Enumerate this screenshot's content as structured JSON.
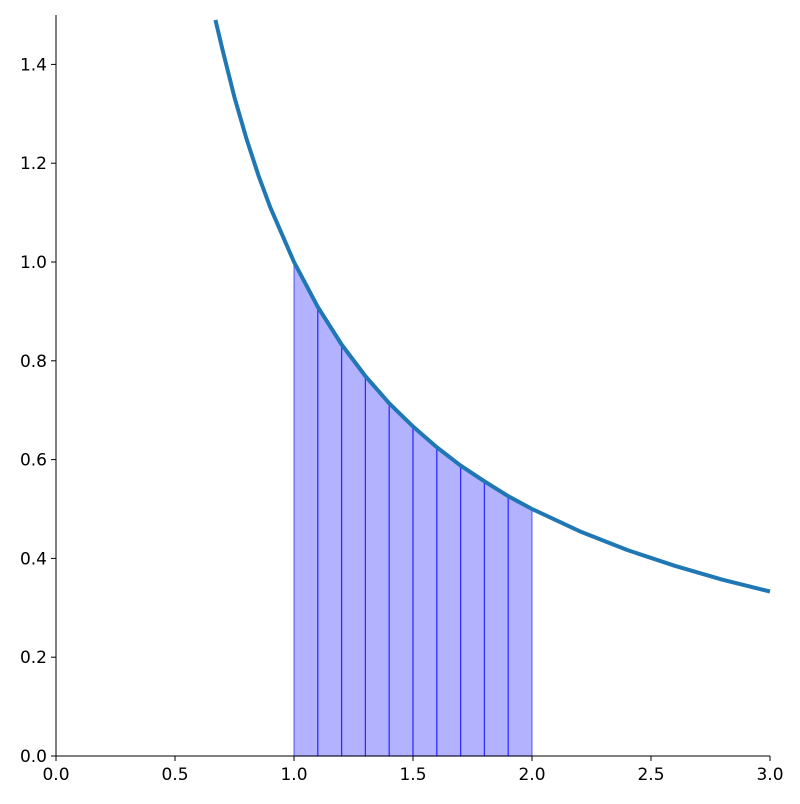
{
  "chart_data": {
    "type": "line",
    "x": [
      0.67,
      0.7,
      0.75,
      0.8,
      0.85,
      0.9,
      1.0,
      1.1,
      1.2,
      1.3,
      1.4,
      1.5,
      1.6,
      1.7,
      1.8,
      1.9,
      2.0,
      2.2,
      2.4,
      2.6,
      2.8,
      3.0
    ],
    "values": [
      1.49,
      1.429,
      1.333,
      1.25,
      1.176,
      1.111,
      1.0,
      0.909,
      0.833,
      0.769,
      0.714,
      0.667,
      0.625,
      0.588,
      0.556,
      0.526,
      0.5,
      0.455,
      0.417,
      0.385,
      0.357,
      0.333
    ],
    "color": "#1f77b4",
    "fill": {
      "x": [
        1.0,
        1.1,
        1.2,
        1.3,
        1.4,
        1.5,
        1.6,
        1.7,
        1.8,
        1.9,
        2.0
      ],
      "values": [
        1.0,
        0.909,
        0.833,
        0.769,
        0.714,
        0.667,
        0.625,
        0.588,
        0.556,
        0.526,
        0.5
      ],
      "color": "#0000ff"
    },
    "xlim": [
      0,
      3
    ],
    "xticks": [
      {
        "value": 0,
        "label": "0.0"
      },
      0.5,
      {
        "value": 1,
        "label": "1.0"
      },
      1.5,
      {
        "value": 2,
        "label": "2.0"
      },
      2.5,
      {
        "value": 3,
        "label": "3.0"
      }
    ],
    "ylim": [
      0,
      1.5
    ],
    "yticks": [
      {
        "value": 0,
        "label": "0.0"
      },
      0.2,
      0.4,
      0.6,
      0.8,
      {
        "value": 1,
        "label": "1.0"
      },
      1.2,
      1.4
    ]
  }
}
